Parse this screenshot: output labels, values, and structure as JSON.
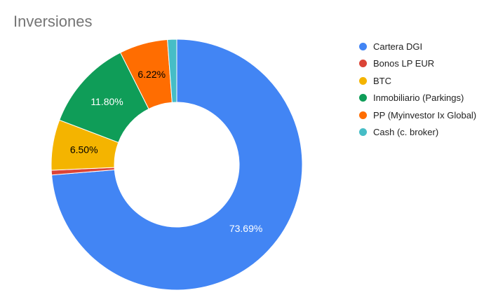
{
  "title": "Inversiones",
  "chart_data": {
    "type": "pie",
    "donut": true,
    "legend_position": "right",
    "series": [
      {
        "name": "Cartera DGI",
        "value": 73.69,
        "label": "73.69%",
        "color": "#4285f4",
        "label_color": "#ffffff"
      },
      {
        "name": "Bonos LP EUR",
        "value": 0.6,
        "label": "",
        "color": "#db4437",
        "label_color": "#000000"
      },
      {
        "name": "BTC",
        "value": 6.5,
        "label": "6.50%",
        "color": "#f4b400",
        "label_color": "#000000"
      },
      {
        "name": "Inmobiliario (Parkings)",
        "value": 11.8,
        "label": "11.80%",
        "color": "#0f9d58",
        "label_color": "#ffffff"
      },
      {
        "name": "PP (Myinvestor Ix Global)",
        "value": 6.22,
        "label": "6.22%",
        "color": "#ff6d01",
        "label_color": "#000000"
      },
      {
        "name": "Cash (c. broker)",
        "value": 1.19,
        "label": "",
        "color": "#46bdc6",
        "label_color": "#000000"
      }
    ]
  }
}
